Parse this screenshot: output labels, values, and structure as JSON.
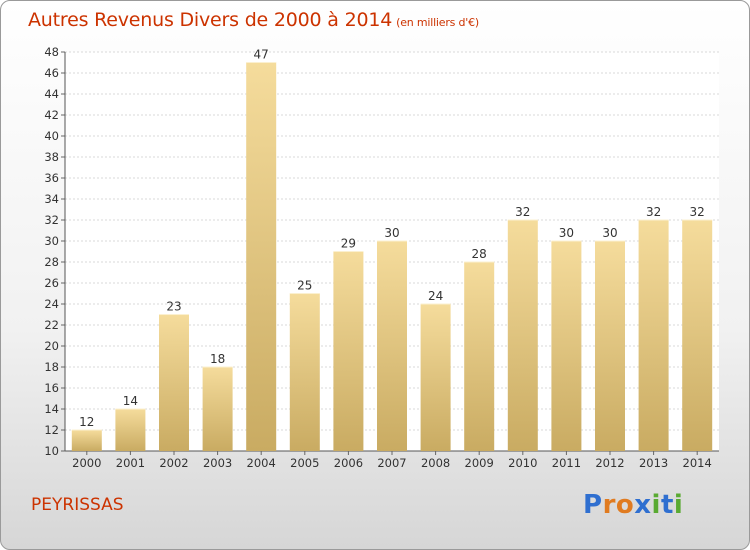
{
  "header": {
    "title": "Autres Revenus Divers de 2000 à 2014",
    "subtitle": "(en milliers d'€)"
  },
  "footer": {
    "commune": "PEYRISSAS",
    "logo_text": "Proxiti"
  },
  "colors": {
    "title": "#cc3300",
    "bar_light": "#f5dc9c",
    "bar_dark": "#c9ab62",
    "logo": [
      "#2f6fd0",
      "#e07b20",
      "#e07b20",
      "#2f6fd0",
      "#5aaa32",
      "#2f6fd0",
      "#5aaa32"
    ]
  },
  "chart_data": {
    "type": "bar",
    "categories": [
      "2000",
      "2001",
      "2002",
      "2003",
      "2004",
      "2005",
      "2006",
      "2007",
      "2008",
      "2009",
      "2010",
      "2011",
      "2012",
      "2013",
      "2014"
    ],
    "values": [
      12,
      14,
      23,
      18,
      47,
      25,
      29,
      30,
      24,
      28,
      32,
      30,
      30,
      32,
      32
    ],
    "ylim": [
      10,
      48
    ],
    "yticks": [
      10,
      12,
      14,
      16,
      18,
      20,
      22,
      24,
      26,
      28,
      30,
      32,
      34,
      36,
      38,
      40,
      42,
      44,
      46,
      48
    ],
    "grid": true,
    "data_labels": true
  }
}
